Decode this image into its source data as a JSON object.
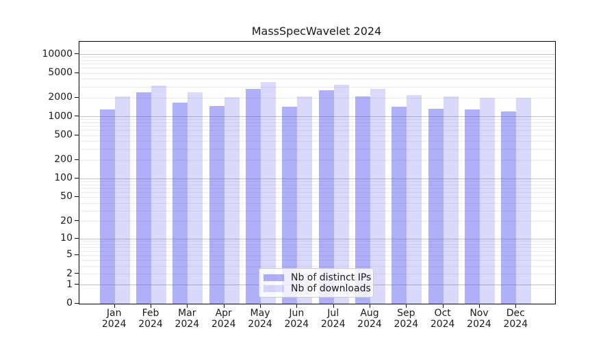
{
  "title": "MassSpecWavelet 2024",
  "legend": {
    "items": [
      {
        "label": "Nb of distinct IPs",
        "series": "distinct_ips"
      },
      {
        "label": "Nb of downloads",
        "series": "downloads"
      }
    ],
    "position": "lower center"
  },
  "colors": {
    "bar_base": "#5050f0",
    "distinct_ips_fill": "rgba(80,80,240,0.45)",
    "downloads_fill": "rgba(80,80,240,0.22)",
    "major_grid": "#c0c0c0",
    "minor_grid": "#ebebeb",
    "axis": "#000000",
    "text": "#1a1a1a"
  },
  "chart_data": {
    "type": "bar",
    "title": "MassSpecWavelet 2024",
    "months": [
      "Jan",
      "Feb",
      "Mar",
      "Apr",
      "May",
      "Jun",
      "Jul",
      "Aug",
      "Sep",
      "Oct",
      "Nov",
      "Dec"
    ],
    "year_label": "2024",
    "series": [
      {
        "name": "Nb of distinct IPs",
        "values": [
          1300,
          2450,
          1670,
          1500,
          2830,
          1450,
          2640,
          2100,
          1450,
          1330,
          1300,
          1210
        ]
      },
      {
        "name": "Nb of downloads",
        "values": [
          2100,
          3200,
          2450,
          2060,
          3600,
          2100,
          3270,
          2810,
          2240,
          2100,
          2030,
          2000
        ]
      }
    ],
    "yscale": "log1p",
    "yticks": [
      0,
      1,
      2,
      5,
      10,
      20,
      50,
      100,
      200,
      500,
      1000,
      2000,
      5000,
      10000
    ],
    "major_grid_values": [
      1,
      10,
      100,
      1000,
      10000
    ],
    "ylim": [
      0,
      16000
    ],
    "grid": true,
    "legend_position": "lower center"
  }
}
